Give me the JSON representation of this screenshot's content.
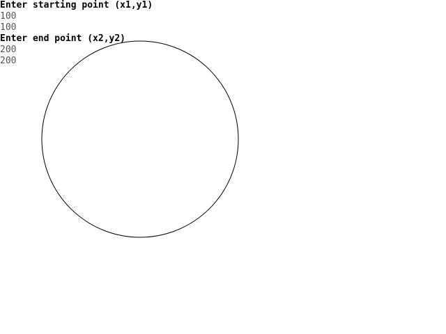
{
  "terminal": {
    "lines": [
      {
        "kind": "prompt",
        "text": "Enter starting point (x1,y1)"
      },
      {
        "kind": "input",
        "text": "100"
      },
      {
        "kind": "input",
        "text": "100"
      },
      {
        "kind": "prompt",
        "text": "Enter end point (x2,y2)"
      },
      {
        "kind": "input",
        "text": "200"
      },
      {
        "kind": "input",
        "text": "200"
      }
    ]
  },
  "drawing": {
    "shape": "circle",
    "stroke_color": "#000000",
    "background_color": "#ffffff"
  }
}
